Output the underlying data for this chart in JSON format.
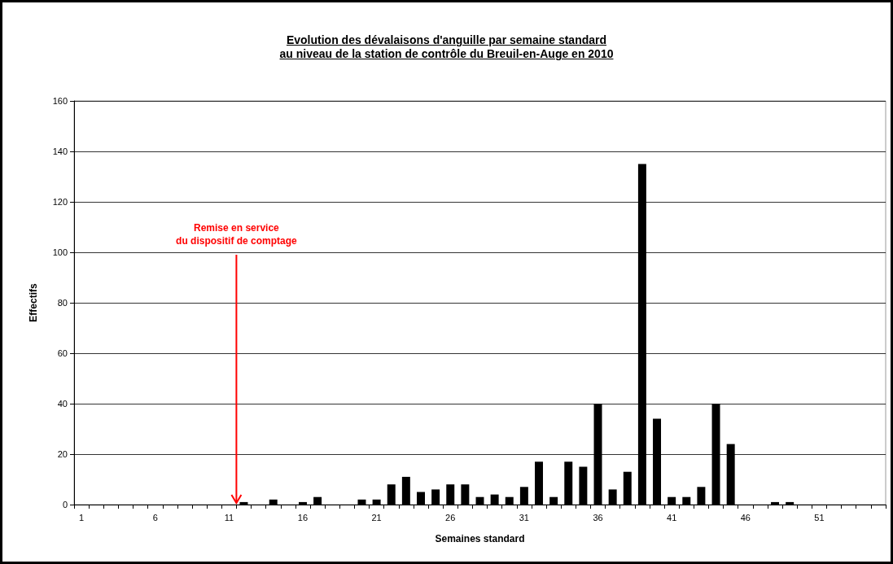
{
  "chart_data": {
    "type": "bar",
    "title": "Evolution des dévalaisons d'anguille par semaine standard \nau niveau de la station de contrôle du Breuil-en-Auge en 2010",
    "xlabel": "Semaines standard",
    "ylabel": "Effectifs",
    "categories": [
      "1",
      null,
      null,
      null,
      null,
      "6",
      null,
      null,
      null,
      null,
      "11",
      null,
      null,
      null,
      null,
      "16",
      null,
      null,
      null,
      null,
      "21",
      null,
      null,
      null,
      null,
      "26",
      null,
      null,
      null,
      null,
      "31",
      null,
      null,
      null,
      null,
      "36",
      null,
      null,
      null,
      null,
      "41",
      null,
      null,
      null,
      null,
      "46",
      null,
      null,
      null,
      null,
      "51",
      null,
      null,
      null,
      null
    ],
    "values": [
      0,
      0,
      0,
      0,
      0,
      0,
      0,
      0,
      0,
      0,
      0,
      1,
      0,
      2,
      0,
      1,
      3,
      0,
      0,
      2,
      2,
      8,
      11,
      5,
      6,
      8,
      8,
      3,
      4,
      3,
      7,
      17,
      3,
      17,
      15,
      40,
      6,
      13,
      135,
      34,
      3,
      3,
      7,
      40,
      24,
      0,
      0,
      1,
      1,
      0,
      0,
      0,
      0,
      0,
      0
    ],
    "color": "#000000",
    "ylim": [
      0,
      160
    ],
    "yticks": [
      0,
      20,
      40,
      60,
      80,
      100,
      120,
      140,
      160
    ],
    "grid": "y",
    "annotations": [
      "Remise en service\ndu dispositif de comptage"
    ]
  }
}
